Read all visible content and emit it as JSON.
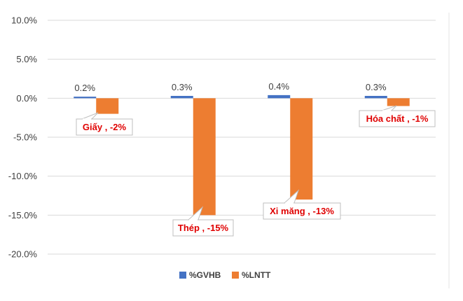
{
  "chart_data": {
    "type": "bar",
    "categories": [
      "Giấy",
      "Thép",
      "Xi măng",
      "Hóa chất"
    ],
    "series": [
      {
        "name": "%GVHB",
        "values": [
          0.2,
          0.3,
          0.4,
          0.3
        ],
        "color": "#4472c4",
        "labels": [
          "0.2%",
          "0.3%",
          "0.4%",
          "0.3%"
        ]
      },
      {
        "name": "%LNTT",
        "values": [
          -2,
          -15,
          -13,
          -1
        ],
        "color": "#ed7d31"
      }
    ],
    "callouts": [
      "Giấy , -2%",
      "Thép , -15%",
      "Xi măng , -13%",
      "Hóa chất , -1%"
    ],
    "callout_color": "#e00000",
    "y_ticks": [
      "10.0%",
      "5.0%",
      "0.0%",
      "-5.0%",
      "-10.0%",
      "-15.0%",
      "-20.0%"
    ],
    "ylim": [
      -20,
      10
    ],
    "grid": true,
    "legend_position": "bottom"
  }
}
